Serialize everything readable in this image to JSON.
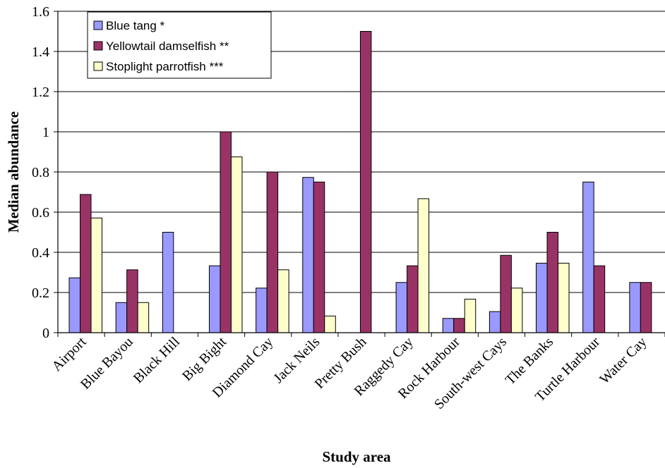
{
  "chart_data": {
    "type": "bar",
    "title": "",
    "xlabel": "Study area",
    "ylabel": "Median abundance",
    "ylim": [
      0,
      1.6
    ],
    "yticks": [
      "0",
      "0.2",
      "0.4",
      "0.6",
      "0.8",
      "1",
      "1.2",
      "1.4",
      "1.6"
    ],
    "grid": true,
    "legend_position": "top-left",
    "categories": [
      "Airport",
      "Blue Bayou",
      "Black Hill",
      "Big Bight",
      "Diamond Cay",
      "Jack Neils",
      "Pretty  Bush",
      "Raggedy Cay",
      "Rock Harbour",
      "South-west Cays",
      "The Banks",
      "Turtle Harbour",
      "Water Cay"
    ],
    "series": [
      {
        "name": "Blue tang *",
        "color": "#9999ff",
        "values": [
          0.273,
          0.15,
          0.5,
          0.333,
          0.222,
          0.773,
          0,
          0.25,
          0.071,
          0.105,
          0.346,
          0.75,
          0.25
        ]
      },
      {
        "name": "Yellowtail damselfish **",
        "color": "#993366",
        "values": [
          0.688,
          0.313,
          0,
          1.0,
          0.8,
          0.75,
          1.5,
          0.333,
          0.071,
          0.385,
          0.5,
          0.333,
          0.25
        ]
      },
      {
        "name": "Stoplight parrotfish ***",
        "color": "#ffffcc",
        "values": [
          0.571,
          0.15,
          0,
          0.875,
          0.313,
          0.083,
          0,
          0.667,
          0.167,
          0.222,
          0.346,
          0,
          0
        ]
      }
    ]
  }
}
